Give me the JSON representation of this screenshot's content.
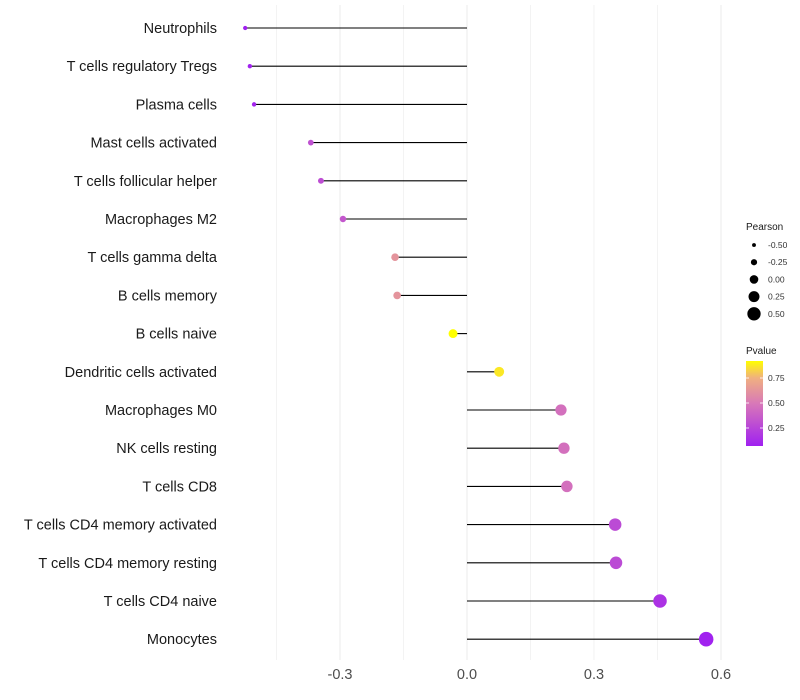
{
  "chart_data": {
    "type": "lollipop",
    "title": "",
    "xlabel": "",
    "ylabel": "",
    "xlim": [
      -0.55,
      0.6
    ],
    "x_ticks": [
      -0.3,
      0.0,
      0.3,
      0.6
    ],
    "x_tick_labels": [
      "-0.3",
      "0.0",
      "0.3",
      "0.6"
    ],
    "grid": true,
    "categories": [
      "Neutrophils",
      "T cells regulatory  Tregs ",
      "Plasma cells",
      "Mast cells activated",
      "T cells follicular helper",
      "Macrophages M2",
      "T cells gamma delta",
      "B cells memory",
      "B cells naive",
      "Dendritic cells activated",
      "Macrophages M0",
      "NK cells resting",
      "T cells CD8",
      "T cells CD4 memory activated",
      "T cells CD4 memory resting",
      "T cells CD4 naive",
      "Monocytes"
    ],
    "pearson": [
      -0.524,
      -0.513,
      -0.503,
      -0.369,
      -0.345,
      -0.293,
      -0.17,
      -0.165,
      -0.033,
      0.076,
      0.222,
      0.229,
      0.236,
      0.35,
      0.352,
      0.456,
      0.565
    ],
    "pvalue": [
      0.06,
      0.07,
      0.08,
      0.3,
      0.28,
      0.33,
      0.62,
      0.62,
      0.92,
      0.87,
      0.45,
      0.45,
      0.45,
      0.27,
      0.27,
      0.15,
      0.07
    ],
    "legend": {
      "placement": "right",
      "size_title": "Pearson",
      "size_breaks": [
        -0.5,
        -0.25,
        0.0,
        0.25,
        0.5
      ],
      "size_labels": [
        "-0.50",
        "-0.25",
        "0.00",
        "0.25",
        "0.50"
      ],
      "color_title": "Pvalue",
      "color_range": [
        0.06,
        0.92
      ],
      "color_breaks": [
        0.25,
        0.5,
        0.75
      ],
      "color_labels": [
        "0.25",
        "0.50",
        "0.75"
      ],
      "color_low": "#A020F0",
      "color_mid": "#D878B8",
      "color_high": "#FFFF00"
    },
    "stem_color": "#000000",
    "grid_color": "#EBEBEB"
  }
}
